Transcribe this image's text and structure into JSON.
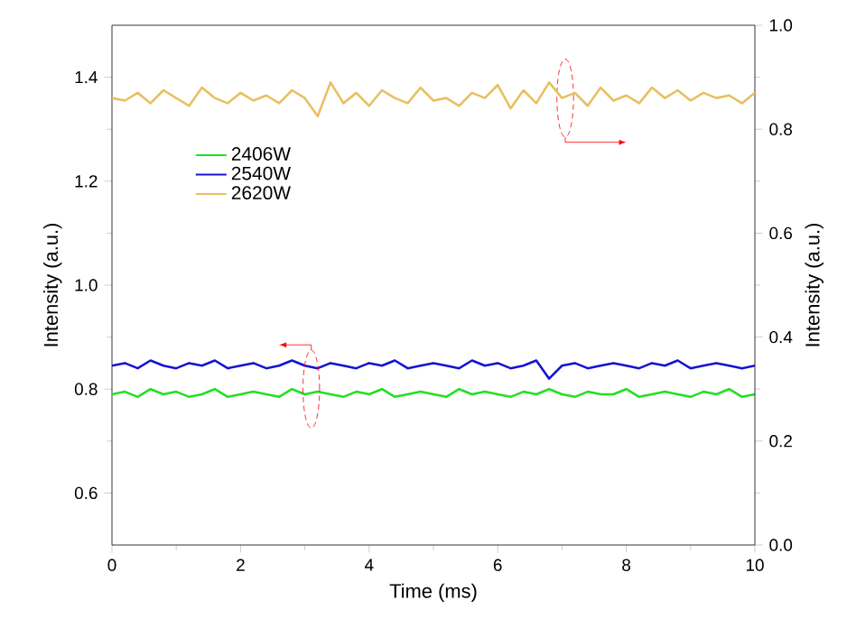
{
  "chart_data": {
    "type": "line",
    "xlabel": "Time (ms)",
    "ylabel": "Intensity (a.u.)",
    "y2label": "Intensity (a.u.)",
    "x": [
      0,
      0.2,
      0.4,
      0.6,
      0.8,
      1,
      1.2,
      1.4,
      1.6,
      1.8,
      2,
      2.2,
      2.4,
      2.6,
      2.8,
      3,
      3.2,
      3.4,
      3.6,
      3.8,
      4,
      4.2,
      4.4,
      4.6,
      4.8,
      5,
      5.2,
      5.4,
      5.6,
      5.8,
      6,
      6.2,
      6.4,
      6.6,
      6.8,
      7,
      7.2,
      7.4,
      7.6,
      7.8,
      8,
      8.2,
      8.4,
      8.6,
      8.8,
      9,
      9.2,
      9.4,
      9.6,
      9.8,
      10
    ],
    "xlim": [
      0,
      10
    ],
    "xticks": [
      0,
      2,
      4,
      6,
      8,
      10
    ],
    "ylim": [
      0.5,
      1.5
    ],
    "yticks": [
      {
        "value": 0.6,
        "label": "0.6"
      },
      {
        "value": 0.8,
        "label": "0.8"
      },
      {
        "value": 1.0,
        "label": "1.0"
      },
      {
        "value": 1.2,
        "label": "1.2"
      },
      {
        "value": 1.4,
        "label": "1.4"
      }
    ],
    "y2lim": [
      0,
      1
    ],
    "y2ticks": [
      {
        "value": 0.0,
        "label": "0.0"
      },
      {
        "value": 0.2,
        "label": "0.2"
      },
      {
        "value": 0.4,
        "label": "0.4"
      },
      {
        "value": 0.6,
        "label": "0.6"
      },
      {
        "value": 0.8,
        "label": "0.8"
      },
      {
        "value": 1.0,
        "label": "1.0"
      }
    ],
    "legend": "top left",
    "series": [
      {
        "name": "2406W",
        "color": "#22e022",
        "values": [
          0.79,
          0.795,
          0.785,
          0.8,
          0.79,
          0.795,
          0.785,
          0.79,
          0.8,
          0.785,
          0.79,
          0.795,
          0.79,
          0.785,
          0.8,
          0.79,
          0.795,
          0.79,
          0.785,
          0.795,
          0.79,
          0.8,
          0.785,
          0.79,
          0.795,
          0.79,
          0.785,
          0.8,
          0.79,
          0.795,
          0.79,
          0.785,
          0.795,
          0.79,
          0.8,
          0.79,
          0.785,
          0.795,
          0.79,
          0.79,
          0.8,
          0.785,
          0.79,
          0.795,
          0.79,
          0.785,
          0.795,
          0.79,
          0.8,
          0.785,
          0.79
        ]
      },
      {
        "name": "2540W",
        "color": "#1414d2",
        "values": [
          0.845,
          0.85,
          0.84,
          0.855,
          0.845,
          0.84,
          0.85,
          0.845,
          0.855,
          0.84,
          0.845,
          0.85,
          0.84,
          0.845,
          0.855,
          0.845,
          0.84,
          0.85,
          0.845,
          0.84,
          0.85,
          0.845,
          0.855,
          0.84,
          0.845,
          0.85,
          0.845,
          0.84,
          0.855,
          0.845,
          0.85,
          0.84,
          0.845,
          0.855,
          0.82,
          0.845,
          0.85,
          0.84,
          0.845,
          0.85,
          0.845,
          0.84,
          0.85,
          0.845,
          0.855,
          0.84,
          0.845,
          0.85,
          0.845,
          0.84,
          0.845
        ]
      },
      {
        "name": "2620W",
        "color": "#e8c060",
        "axis": "y2",
        "values": [
          0.86,
          0.855,
          0.87,
          0.85,
          0.875,
          0.86,
          0.845,
          0.88,
          0.86,
          0.85,
          0.87,
          0.855,
          0.865,
          0.85,
          0.875,
          0.86,
          0.825,
          0.89,
          0.85,
          0.87,
          0.845,
          0.875,
          0.86,
          0.85,
          0.88,
          0.855,
          0.86,
          0.845,
          0.87,
          0.86,
          0.885,
          0.84,
          0.875,
          0.85,
          0.89,
          0.86,
          0.87,
          0.845,
          0.88,
          0.855,
          0.865,
          0.85,
          0.88,
          0.86,
          0.875,
          0.855,
          0.87,
          0.86,
          0.865,
          0.85,
          0.87
        ]
      }
    ]
  }
}
